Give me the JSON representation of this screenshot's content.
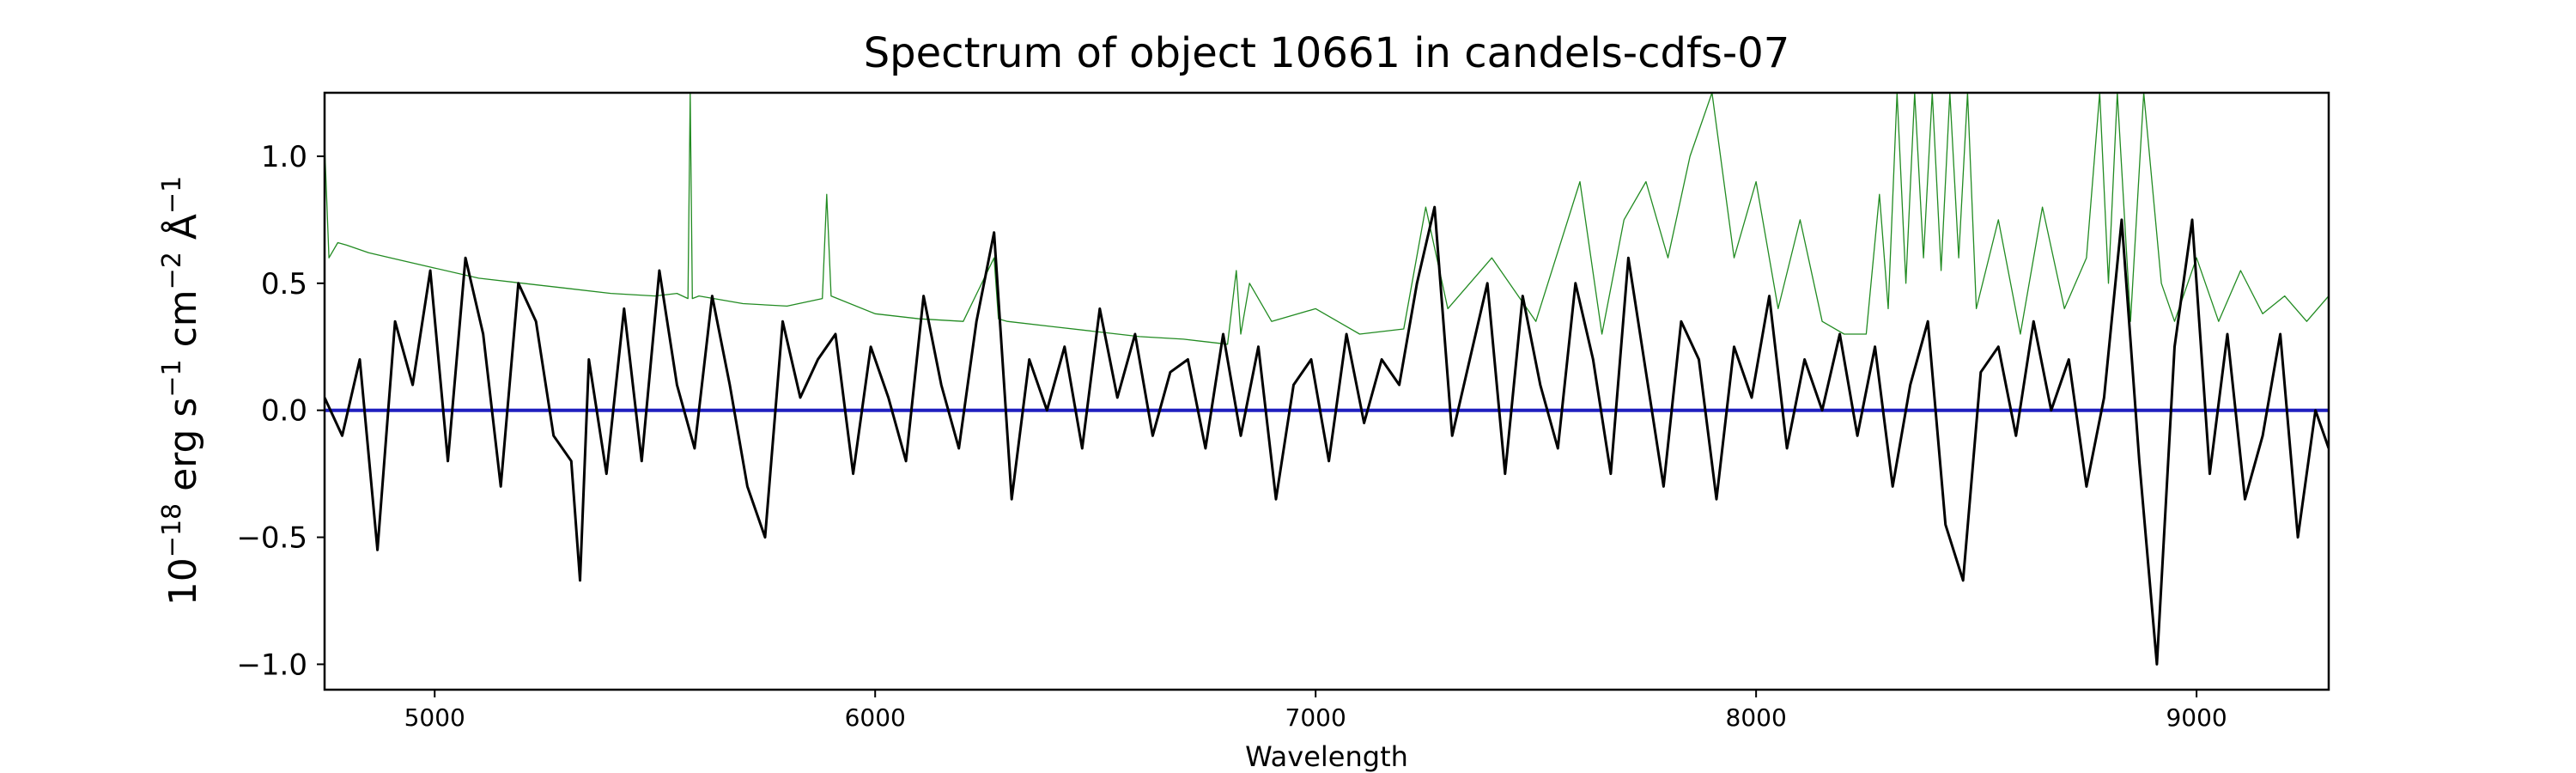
{
  "chart_data": {
    "type": "line",
    "title": "Spectrum of object 10661 in candels-cdfs-07",
    "xlabel": "Wavelength",
    "ylabel": {
      "base": "10",
      "exp": "−18",
      "unit1": " erg s",
      "unit1_exp": "−1",
      "unit2": " cm",
      "unit2_exp": "−2",
      "unit3": " Å",
      "unit3_exp": "−1"
    },
    "xlim": [
      4750,
      9300
    ],
    "ylim": [
      -1.1,
      1.25
    ],
    "xticks": [
      5000,
      6000,
      7000,
      8000,
      9000
    ],
    "xtick_labels": [
      "5000",
      "6000",
      "7000",
      "8000",
      "9000"
    ],
    "yticks": [
      1.0,
      0.5,
      0.0,
      -0.5,
      -1.0
    ],
    "ytick_labels": [
      "1.0",
      "0.5",
      "0.0",
      "−0.5",
      "−1.0"
    ],
    "grid": false,
    "legend": "none",
    "series": [
      {
        "role": "flux",
        "color": "#000000",
        "x": [
          4750,
          4790,
          4830,
          4870,
          4910,
          4950,
          4990,
          5030,
          5070,
          5110,
          5150,
          5190,
          5230,
          5270,
          5310,
          5330,
          5350,
          5390,
          5430,
          5470,
          5510,
          5550,
          5590,
          5630,
          5670,
          5710,
          5750,
          5790,
          5830,
          5870,
          5910,
          5950,
          5990,
          6030,
          6070,
          6110,
          6150,
          6190,
          6230,
          6270,
          6310,
          6350,
          6390,
          6430,
          6470,
          6510,
          6550,
          6590,
          6630,
          6670,
          6710,
          6750,
          6790,
          6830,
          6870,
          6910,
          6950,
          6990,
          7030,
          7070,
          7110,
          7150,
          7190,
          7230,
          7270,
          7310,
          7350,
          7390,
          7430,
          7470,
          7510,
          7550,
          7590,
          7630,
          7670,
          7710,
          7750,
          7790,
          7830,
          7870,
          7910,
          7950,
          7990,
          8030,
          8070,
          8110,
          8150,
          8190,
          8230,
          8270,
          8310,
          8350,
          8390,
          8430,
          8470,
          8510,
          8550,
          8590,
          8630,
          8670,
          8710,
          8750,
          8790,
          8830,
          8870,
          8910,
          8950,
          8990,
          9030,
          9070,
          9110,
          9150,
          9190,
          9230,
          9270,
          9300
        ],
        "y": [
          0.05,
          -0.1,
          0.2,
          -0.55,
          0.35,
          0.1,
          0.55,
          -0.2,
          0.6,
          0.3,
          -0.3,
          0.5,
          0.35,
          -0.1,
          -0.2,
          -0.67,
          0.2,
          -0.25,
          0.4,
          -0.2,
          0.55,
          0.1,
          -0.15,
          0.45,
          0.1,
          -0.3,
          -0.5,
          0.35,
          0.05,
          0.2,
          0.3,
          -0.25,
          0.25,
          0.05,
          -0.2,
          0.45,
          0.1,
          -0.15,
          0.35,
          0.7,
          -0.35,
          0.2,
          0.0,
          0.25,
          -0.15,
          0.4,
          0.05,
          0.3,
          -0.1,
          0.15,
          0.2,
          -0.15,
          0.3,
          -0.1,
          0.25,
          -0.35,
          0.1,
          0.2,
          -0.2,
          0.3,
          -0.05,
          0.2,
          0.1,
          0.5,
          0.8,
          -0.1,
          0.2,
          0.5,
          -0.25,
          0.45,
          0.1,
          -0.15,
          0.5,
          0.2,
          -0.25,
          0.6,
          0.15,
          -0.3,
          0.35,
          0.2,
          -0.35,
          0.25,
          0.05,
          0.45,
          -0.15,
          0.2,
          0.0,
          0.3,
          -0.1,
          0.25,
          -0.3,
          0.1,
          0.35,
          -0.45,
          -0.67,
          0.15,
          0.25,
          -0.1,
          0.35,
          0.0,
          0.2,
          -0.3,
          0.05,
          0.75,
          -0.2,
          -1.0,
          0.25,
          0.75,
          -0.25,
          0.3,
          -0.35,
          -0.1,
          0.3,
          -0.5,
          0.0,
          -0.15
        ],
        "linewidth": 3
      },
      {
        "role": "error",
        "color": "#228b22",
        "x": [
          4750,
          4760,
          4780,
          4800,
          4850,
          4900,
          5000,
          5100,
          5200,
          5300,
          5400,
          5500,
          5550,
          5575,
          5580,
          5585,
          5600,
          5700,
          5800,
          5880,
          5890,
          5900,
          6000,
          6100,
          6200,
          6270,
          6280,
          6300,
          6400,
          6500,
          6600,
          6700,
          6800,
          6820,
          6830,
          6850,
          6900,
          7000,
          7100,
          7200,
          7250,
          7300,
          7400,
          7500,
          7600,
          7650,
          7700,
          7750,
          7800,
          7850,
          7900,
          7950,
          8000,
          8050,
          8100,
          8150,
          8200,
          8250,
          8280,
          8300,
          8320,
          8340,
          8360,
          8380,
          8400,
          8420,
          8440,
          8460,
          8480,
          8500,
          8550,
          8600,
          8650,
          8700,
          8750,
          8780,
          8800,
          8820,
          8850,
          8880,
          8920,
          8950,
          9000,
          9050,
          9100,
          9150,
          9200,
          9250,
          9300
        ],
        "y": [
          1.05,
          0.6,
          0.66,
          0.65,
          0.62,
          0.6,
          0.56,
          0.52,
          0.5,
          0.48,
          0.46,
          0.45,
          0.46,
          0.44,
          1.25,
          0.44,
          0.45,
          0.42,
          0.41,
          0.44,
          0.85,
          0.45,
          0.38,
          0.36,
          0.35,
          0.6,
          0.36,
          0.35,
          0.33,
          0.31,
          0.29,
          0.28,
          0.26,
          0.55,
          0.3,
          0.5,
          0.35,
          0.4,
          0.3,
          0.32,
          0.8,
          0.4,
          0.6,
          0.35,
          0.9,
          0.3,
          0.75,
          0.9,
          0.6,
          1.0,
          1.25,
          0.6,
          0.9,
          0.4,
          0.75,
          0.35,
          0.3,
          0.3,
          0.85,
          0.4,
          1.25,
          0.5,
          1.25,
          0.6,
          1.25,
          0.55,
          1.25,
          0.6,
          1.25,
          0.4,
          0.75,
          0.3,
          0.8,
          0.4,
          0.6,
          1.25,
          0.5,
          1.25,
          0.35,
          1.25,
          0.5,
          0.35,
          0.6,
          0.35,
          0.55,
          0.38,
          0.45,
          0.35,
          0.45
        ],
        "linewidth": 1.3
      },
      {
        "role": "zero",
        "color": "#1f1fbf",
        "x": [
          4750,
          9300
        ],
        "y": [
          0.0,
          0.0
        ],
        "linewidth": 4
      }
    ]
  }
}
